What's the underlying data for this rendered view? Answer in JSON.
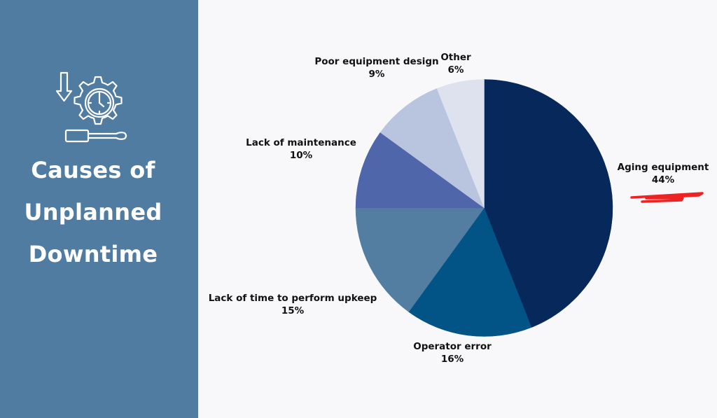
{
  "side_panel": {
    "icon": "gear-clock-screwdriver-icon",
    "title_lines": [
      "Causes of",
      "Unplanned",
      "Downtime"
    ],
    "background": "#517ca1"
  },
  "chart_data": {
    "type": "pie",
    "title": "Causes of Unplanned Downtime",
    "categories": [
      "Aging equipment",
      "Operator error",
      "Lack of time to perform upkeep",
      "Lack of maintenance",
      "Poor equipment design",
      "Other"
    ],
    "values": [
      44,
      16,
      15,
      10,
      9,
      6
    ],
    "unit": "%",
    "colors": [
      "#06285a",
      "#035486",
      "#537ea1",
      "#5066ab",
      "#b9c4df",
      "#dde2ee"
    ],
    "start_angle_deg": 0,
    "direction": "clockwise",
    "legend": "none (direct labels)",
    "annotations": [
      "Red hand-drawn underline beneath 'Aging equipment 44%'"
    ]
  },
  "labels": [
    {
      "name": "Aging equipment",
      "value": "44%"
    },
    {
      "name": "Operator error",
      "value": "16%"
    },
    {
      "name": "Lack of time to perform upkeep",
      "value": "15%"
    },
    {
      "name": "Lack of maintenance",
      "value": "10%"
    },
    {
      "name": "Poor equipment design",
      "value": "9%"
    },
    {
      "name": "Other",
      "value": "6%"
    }
  ],
  "highlight": {
    "color": "#ee2222"
  }
}
